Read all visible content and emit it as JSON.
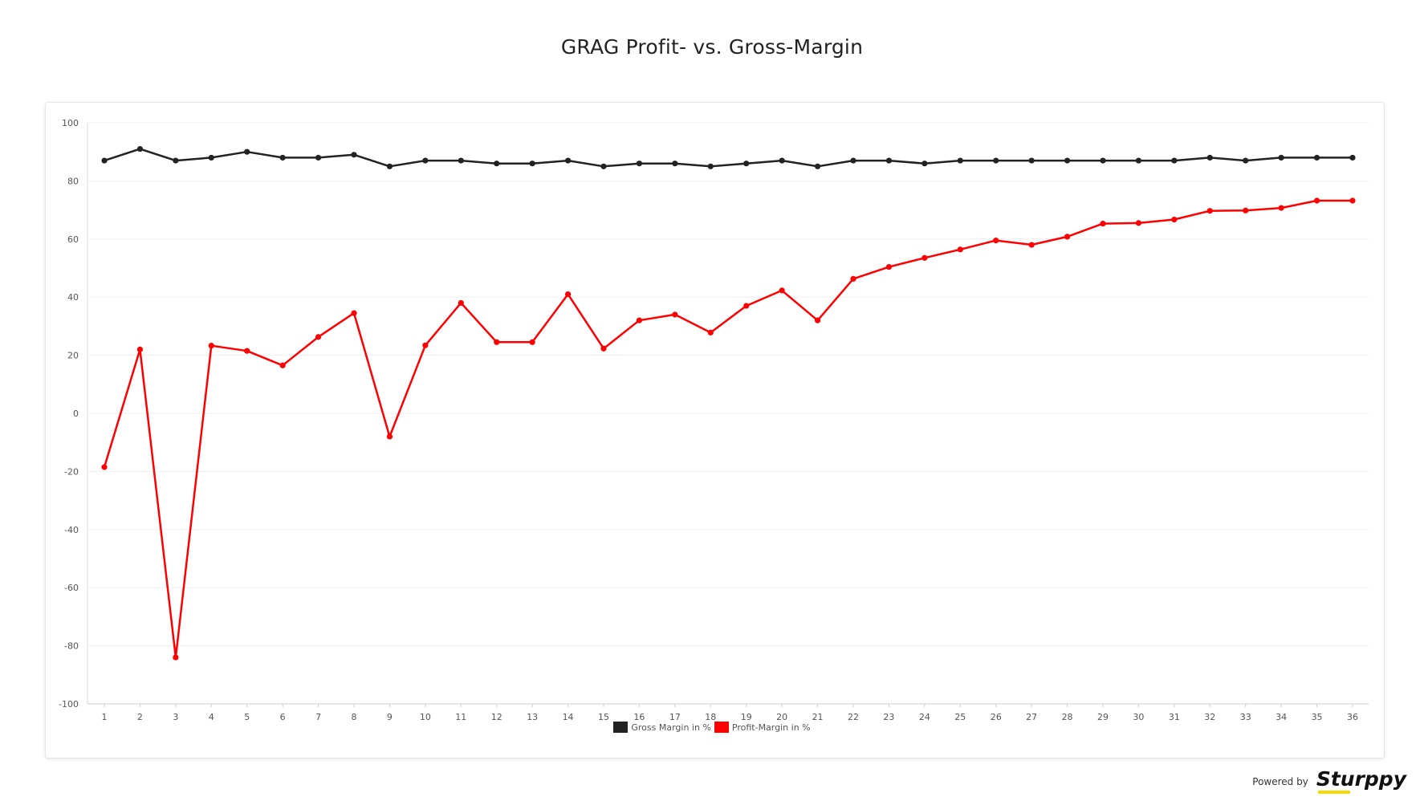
{
  "page": {
    "powered_by": "Powered by",
    "brand": "Sturppy"
  },
  "chart_data": {
    "type": "line",
    "title": "GRAG Profit- vs. Gross-Margin",
    "xlabel": "",
    "ylabel": "",
    "x": [
      1,
      2,
      3,
      4,
      5,
      6,
      7,
      8,
      9,
      10,
      11,
      12,
      13,
      14,
      15,
      16,
      17,
      18,
      19,
      20,
      21,
      22,
      23,
      24,
      25,
      26,
      27,
      28,
      29,
      30,
      31,
      32,
      33,
      34,
      35,
      36
    ],
    "ylim": [
      -100,
      100
    ],
    "yticks": [
      100,
      80,
      60,
      40,
      20,
      0,
      -20,
      -40,
      -60,
      -80,
      -100
    ],
    "grid": true,
    "legend_position": "bottom",
    "series": [
      {
        "name": "Gross Margin in %",
        "color": "#222222",
        "values": [
          87,
          91,
          87,
          88,
          90,
          88,
          88,
          89,
          85,
          87,
          87,
          86,
          86,
          87,
          85,
          86,
          86,
          85,
          86,
          87,
          85,
          87,
          87,
          86,
          87,
          87,
          87,
          87,
          87,
          87,
          87,
          88,
          87,
          88,
          88,
          88
        ]
      },
      {
        "name": "Profit-Margin in %",
        "color": "#ff0000",
        "values": [
          -18.5,
          22,
          -84,
          23.3,
          21.5,
          16.5,
          26.3,
          34.5,
          -8,
          23.4,
          38,
          24.5,
          24.5,
          41,
          22.3,
          32,
          34,
          27.8,
          37,
          42.3,
          32,
          46.3,
          50.4,
          53.5,
          56.4,
          59.5,
          58,
          60.8,
          65.3,
          65.5,
          66.7,
          69.7,
          69.8,
          70.7,
          73.2,
          73.2
        ]
      }
    ]
  }
}
